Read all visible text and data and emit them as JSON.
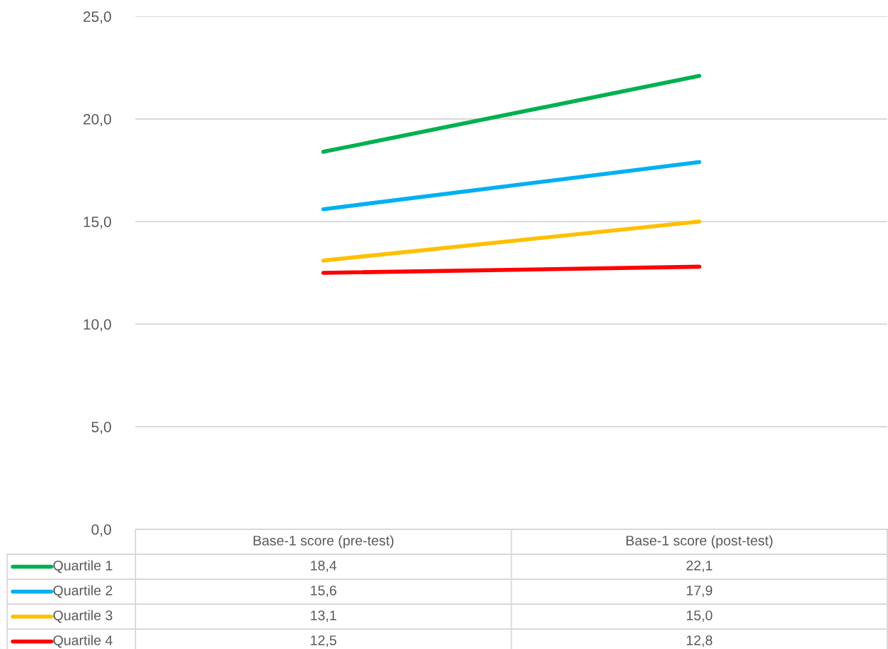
{
  "chart_data": {
    "type": "line",
    "categories": [
      "Base-1 score (pre-test)",
      "Base-1 score (post-test)"
    ],
    "series": [
      {
        "name": "Quartile 1",
        "color": "#00b050",
        "values": [
          18.4,
          22.1
        ],
        "value_labels": [
          "18,4",
          "22,1"
        ]
      },
      {
        "name": "Quartile 2",
        "color": "#00b0f0",
        "values": [
          15.6,
          17.9
        ],
        "value_labels": [
          "15,6",
          "17,9"
        ]
      },
      {
        "name": "Quartile 3",
        "color": "#ffc000",
        "values": [
          13.1,
          15.0
        ],
        "value_labels": [
          "13,1",
          "15,0"
        ]
      },
      {
        "name": "Quartile 4",
        "color": "#ff0000",
        "values": [
          12.5,
          12.8
        ],
        "value_labels": [
          "12,5",
          "12,8"
        ]
      }
    ],
    "ylim": [
      0,
      25
    ],
    "yticks": [
      {
        "value": 0,
        "label": "0,0"
      },
      {
        "value": 5,
        "label": "5,0"
      },
      {
        "value": 10,
        "label": "10,0"
      },
      {
        "value": 15,
        "label": "15,0"
      },
      {
        "value": 20,
        "label": "20,0"
      },
      {
        "value": 25,
        "label": "25,0"
      }
    ],
    "grid": "y",
    "legend": "bottom",
    "marker": "none",
    "line_style": "solid"
  }
}
